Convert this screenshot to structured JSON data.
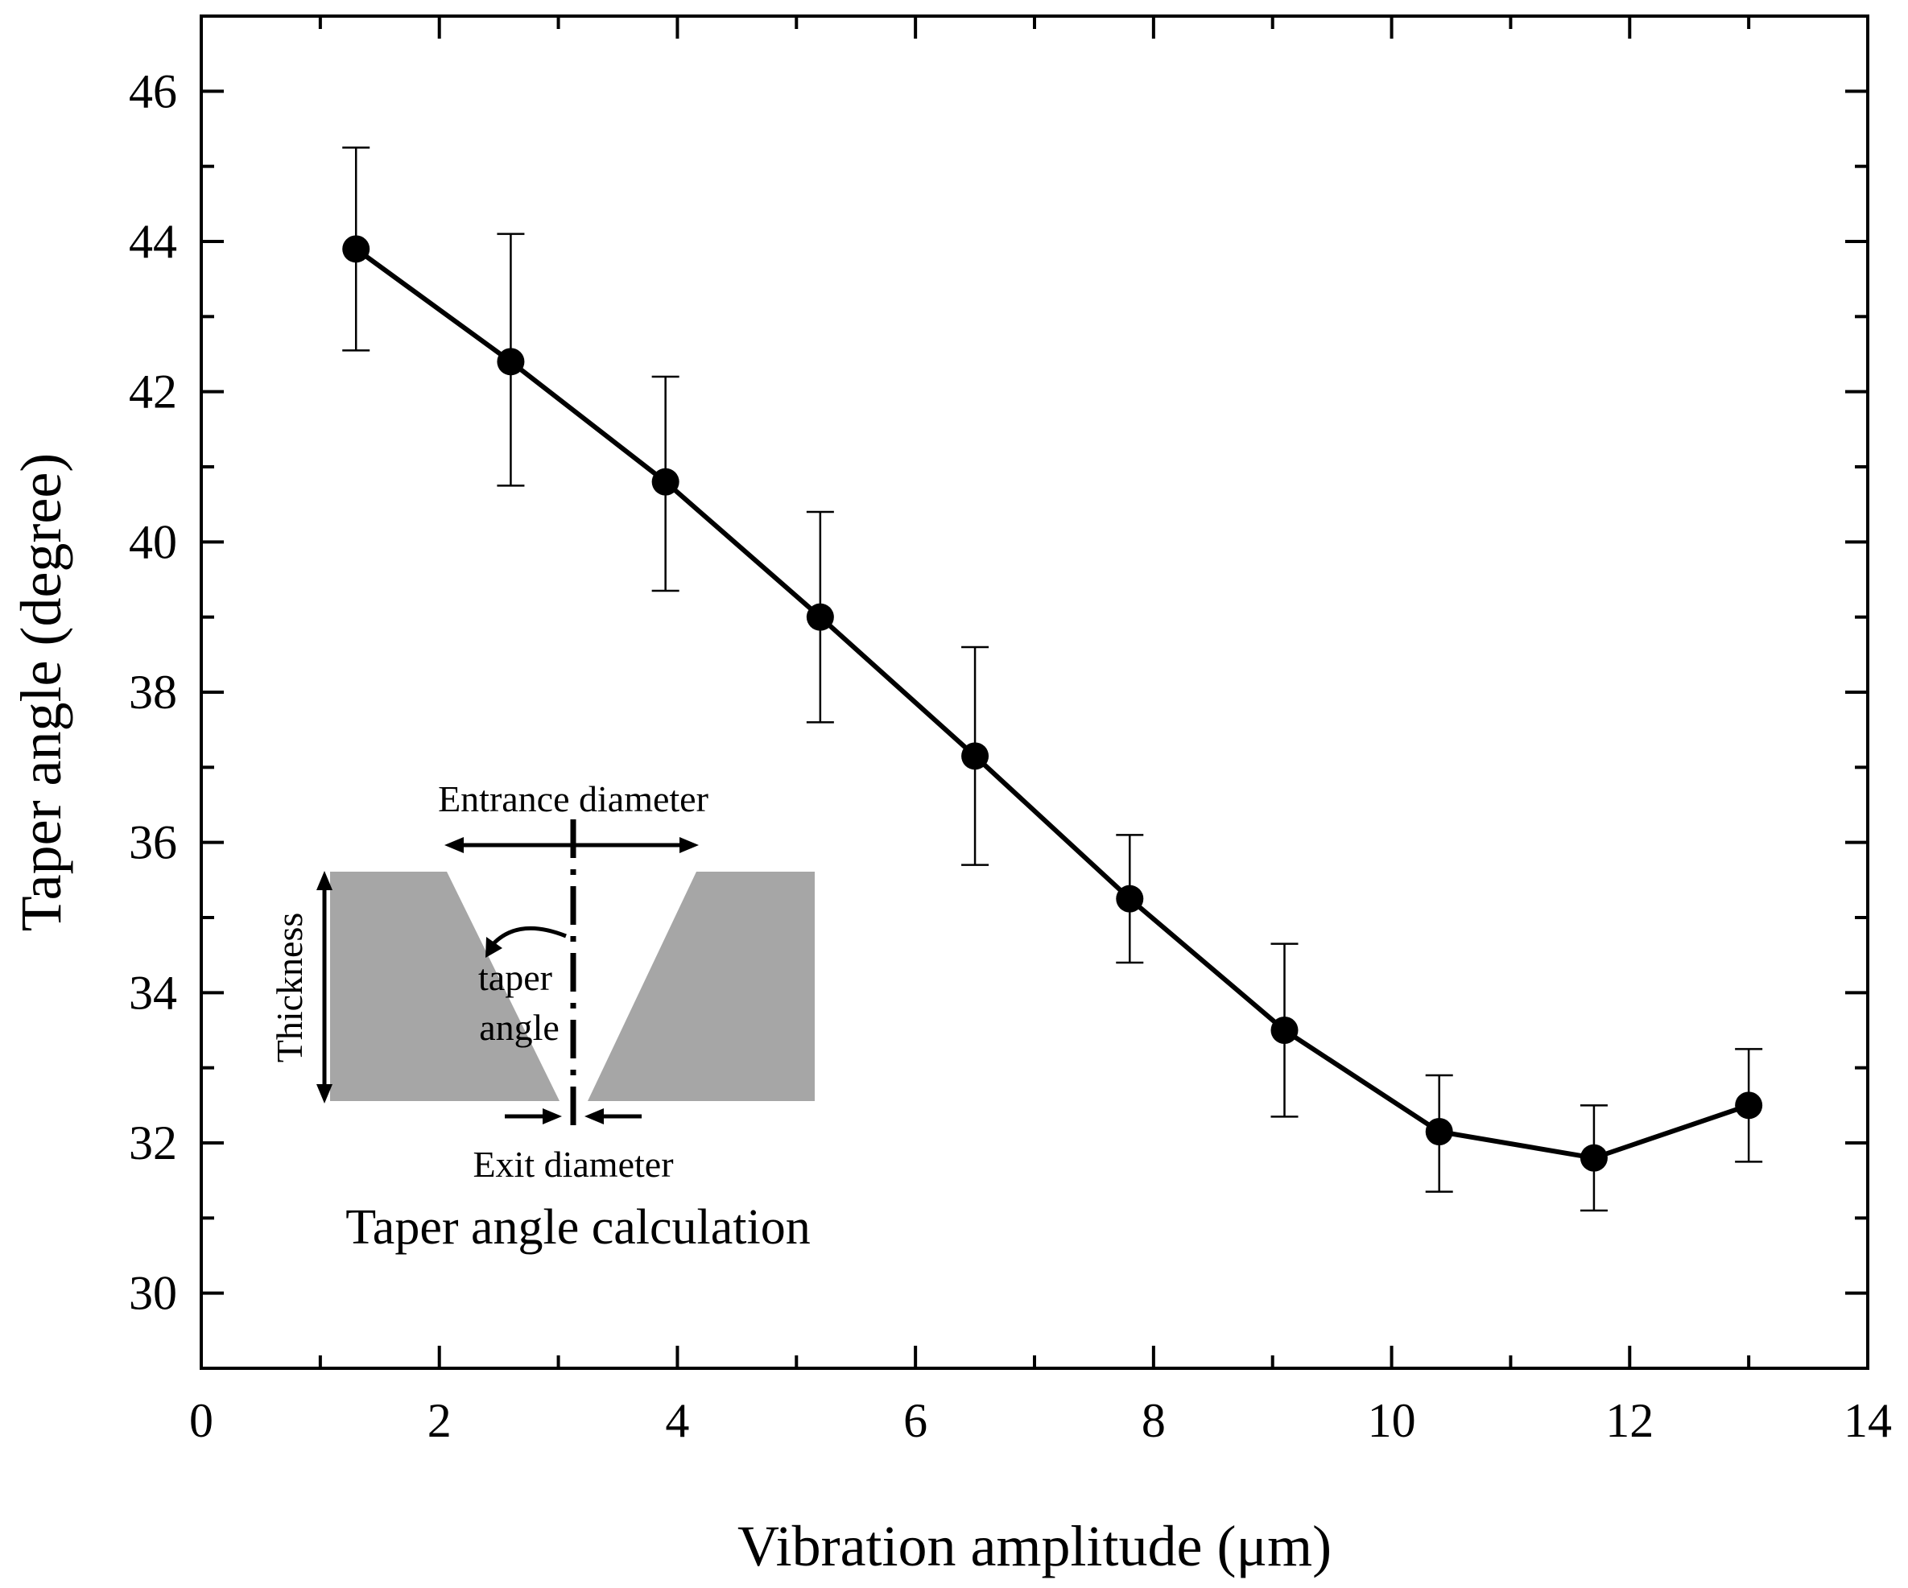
{
  "chart_data": {
    "type": "line",
    "title": "",
    "xlabel": "Vibration amplitude (μm)",
    "ylabel": "Taper angle (degree)",
    "xlim": [
      0,
      14
    ],
    "ylim": [
      29,
      47
    ],
    "x_ticks": [
      0,
      2,
      4,
      6,
      8,
      10,
      12,
      14
    ],
    "y_ticks": [
      30,
      32,
      34,
      36,
      38,
      40,
      42,
      44,
      46
    ],
    "x_tick_labels": [
      "0",
      "2",
      "4",
      "6",
      "8",
      "10",
      "12",
      "14"
    ],
    "y_tick_labels": [
      "30",
      "32",
      "34",
      "36",
      "38",
      "40",
      "42",
      "44",
      "46"
    ],
    "grid": false,
    "series": [
      {
        "name": "Taper angle",
        "x": [
          1.3,
          2.6,
          3.9,
          5.2,
          6.5,
          7.8,
          9.1,
          10.4,
          11.7,
          13.0
        ],
        "y": [
          43.9,
          42.4,
          40.8,
          39.0,
          37.15,
          35.25,
          33.5,
          32.15,
          31.8,
          32.5
        ],
        "err_low": [
          42.55,
          40.75,
          39.35,
          37.6,
          35.7,
          34.4,
          32.35,
          31.35,
          31.1,
          31.75
        ],
        "err_high": [
          45.25,
          44.1,
          42.2,
          40.4,
          38.6,
          36.1,
          34.65,
          32.9,
          32.5,
          33.25
        ],
        "color": "#000000"
      }
    ],
    "inset": {
      "title": "Taper angle calculation",
      "labels": {
        "entrance": "Entrance diameter",
        "exit": "Exit diameter",
        "thickness": "Thickness",
        "taper_line1": "taper",
        "taper_line2": "angle"
      },
      "fill_color": "#a6a6a6"
    }
  }
}
